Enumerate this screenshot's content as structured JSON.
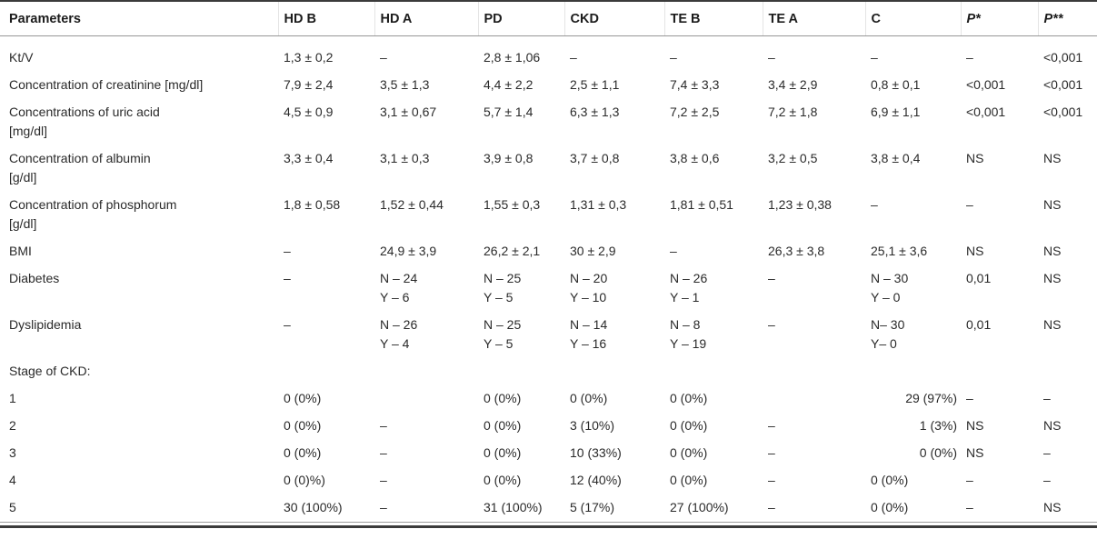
{
  "table": {
    "columns": [
      {
        "key": "parameters",
        "label": "Parameters",
        "italic": false
      },
      {
        "key": "hd-b",
        "label": "HD B",
        "italic": false
      },
      {
        "key": "hd-a",
        "label": "HD A",
        "italic": false
      },
      {
        "key": "pd",
        "label": "PD",
        "italic": false
      },
      {
        "key": "ckd",
        "label": "CKD",
        "italic": false
      },
      {
        "key": "te-b",
        "label": "TE B",
        "italic": false
      },
      {
        "key": "te-a",
        "label": "TE A",
        "italic": false
      },
      {
        "key": "c",
        "label": "C",
        "italic": false
      },
      {
        "key": "p-star",
        "label": "P*",
        "italic": true
      },
      {
        "key": "p-star-star",
        "label": "P**",
        "italic": true
      }
    ],
    "rows": [
      {
        "label": "Kt/V",
        "cells": [
          "1,3 ± 0,2",
          "–",
          "2,8 ± 1,06",
          "–",
          "–",
          "–",
          "–",
          "–",
          "<0,001"
        ]
      },
      {
        "label": "Concentration of creatinine [mg/dl]",
        "cells": [
          "7,9 ± 2,4",
          "3,5 ± 1,3",
          "4,4 ± 2,2",
          "2,5 ± 1,1",
          "7,4 ± 3,3",
          "3,4 ± 2,9",
          "0,8 ± 0,1",
          "<0,001",
          "<0,001"
        ]
      },
      {
        "label": "Concentrations of uric acid\n[mg/dl]",
        "cells": [
          "4,5 ± 0,9",
          "3,1 ± 0,67",
          "5,7 ± 1,4",
          "6,3 ± 1,3",
          "7,2 ± 2,5",
          "7,2 ± 1,8",
          "6,9 ± 1,1",
          "<0,001",
          "<0,001"
        ]
      },
      {
        "label": "Concentration of albumin\n[g/dl]",
        "cells": [
          "3,3 ± 0,4",
          "3,1 ± 0,3",
          "3,9 ± 0,8",
          "3,7 ± 0,8",
          "3,8 ± 0,6",
          "3,2 ± 0,5",
          "3,8 ± 0,4",
          "NS",
          "NS"
        ]
      },
      {
        "label": "Concentration of phosphorum\n[g/dl]",
        "cells": [
          "1,8 ± 0,58",
          "1,52 ± 0,44",
          "1,55 ± 0,3",
          "1,31 ± 0,3",
          "1,81 ± 0,51",
          "1,23 ± 0,38",
          "–",
          "–",
          "NS"
        ]
      },
      {
        "label": "BMI",
        "cells": [
          "–",
          "24,9 ± 3,9",
          "26,2 ± 2,1",
          "30 ± 2,9",
          "–",
          "26,3 ± 3,8",
          "25,1 ± 3,6",
          "NS",
          "NS"
        ]
      },
      {
        "label": "Diabetes",
        "cells": [
          "–",
          "N – 24\nY – 6",
          "N – 25\nY – 5",
          "N – 20\nY – 10",
          "N – 26\nY – 1",
          "–",
          "N – 30\nY – 0",
          "0,01",
          "NS"
        ]
      },
      {
        "label": "Dyslipidemia",
        "cells": [
          "–",
          "N – 26\nY – 4",
          "N – 25\nY – 5",
          "N – 14\nY – 16",
          "N – 8\nY – 19",
          "–",
          "N– 30\nY– 0",
          "0,01",
          "NS"
        ]
      },
      {
        "label": "Stage of CKD:",
        "cells": [
          "",
          "",
          "",
          "",
          "",
          "",
          "",
          "",
          ""
        ]
      },
      {
        "label": "1",
        "c_align": "right",
        "cells": [
          "0 (0%)",
          "",
          "0 (0%)",
          "0 (0%)",
          "0 (0%)",
          "",
          "29 (97%)",
          "–",
          "–"
        ]
      },
      {
        "label": "2",
        "c_align": "right",
        "cells": [
          "0 (0%)",
          "–",
          "0 (0%)",
          "3 (10%)",
          "0 (0%)",
          "–",
          "1 (3%)",
          "NS",
          "NS"
        ]
      },
      {
        "label": "3",
        "c_align": "right",
        "cells": [
          "0 (0%)",
          "–",
          "0 (0%)",
          "10 (33%)",
          "0 (0%)",
          "–",
          "0 (0%)",
          "NS",
          "–"
        ]
      },
      {
        "label": "4",
        "cells": [
          "0 (0)%)",
          "–",
          "0 (0%)",
          "12 (40%)",
          "0 (0%)",
          "–",
          "0 (0%)",
          "–",
          "–"
        ]
      },
      {
        "label": "5",
        "cells": [
          "30 (100%)",
          "–",
          "31 (100%)",
          "5 (17%)",
          "27 (100%)",
          "–",
          "0 (0%)",
          "–",
          "NS"
        ]
      }
    ]
  }
}
